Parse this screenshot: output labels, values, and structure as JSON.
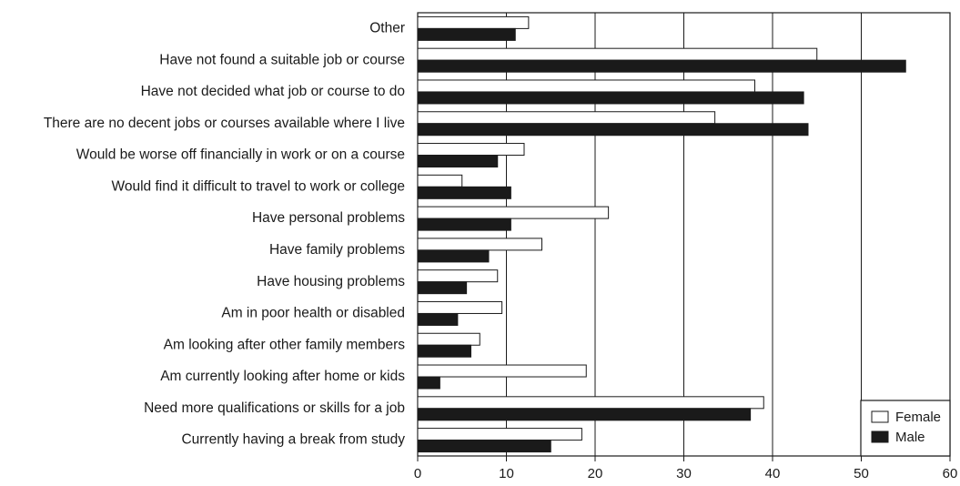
{
  "chart_data": {
    "type": "bar",
    "orientation": "horizontal",
    "categories": [
      "Other",
      "Have not found a suitable job or course",
      "Have not decided what job or course to do",
      "There are no decent jobs or courses available where I live",
      "Would be worse off financially in work or on a course",
      "Would find it difficult to travel to work or college",
      "Have personal problems",
      "Have family problems",
      "Have housing problems",
      "Am in poor health or disabled",
      "Am looking after other family members",
      "Am currently looking after home or kids",
      "Need more qualifications or skills for a job",
      "Currently having a break from study"
    ],
    "series": [
      {
        "name": "Female",
        "color": "#ffffff",
        "values": [
          12.5,
          45,
          38,
          33.5,
          12,
          5,
          21.5,
          14,
          9,
          9.5,
          7,
          19,
          39,
          18.5
        ]
      },
      {
        "name": "Male",
        "color": "#1a1a1a",
        "values": [
          11,
          55,
          43.5,
          44,
          9,
          10.5,
          10.5,
          8,
          5.5,
          4.5,
          6,
          2.5,
          37.5,
          15
        ]
      }
    ],
    "xlim": [
      0,
      60
    ],
    "xticks": [
      "0",
      "10",
      "20",
      "30",
      "40",
      "50",
      "60"
    ],
    "grid": "vertical",
    "legend_position": "bottom-right"
  }
}
